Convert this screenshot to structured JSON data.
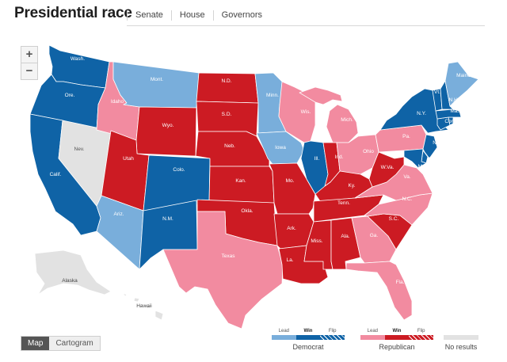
{
  "header": {
    "title": "Presidential race",
    "tabs": [
      "Senate",
      "House",
      "Governors"
    ]
  },
  "zoom": {
    "in": "+",
    "out": "−"
  },
  "view_toggle": {
    "map": "Map",
    "cartogram": "Cartogram",
    "selected": "Map"
  },
  "legend": {
    "democrat": {
      "caption": "Democrat",
      "lead": "Lead",
      "win": "Win",
      "flip": "Flip"
    },
    "republican": {
      "caption": "Republican",
      "lead": "Lead",
      "win": "Win",
      "flip": "Flip"
    },
    "no_results": {
      "caption": "No results"
    }
  },
  "colors": {
    "dem_lead": "#79aedb",
    "dem_win": "#0f63a6",
    "rep_lead": "#f28ba0",
    "rep_win": "#cc1b23",
    "no_results": "#e2e2e2",
    "flip_stripe": "#ffffff"
  },
  "states": [
    {
      "id": "WA",
      "label": "Wash.",
      "status": "dem_win"
    },
    {
      "id": "OR",
      "label": "Ore.",
      "status": "dem_win"
    },
    {
      "id": "CA",
      "label": "Calif.",
      "status": "dem_win"
    },
    {
      "id": "NV",
      "label": "Nev.",
      "status": "no_results"
    },
    {
      "id": "ID",
      "label": "Idaho",
      "status": "rep_lead"
    },
    {
      "id": "MT",
      "label": "Mont.",
      "status": "dem_lead"
    },
    {
      "id": "WY",
      "label": "Wyo.",
      "status": "rep_win"
    },
    {
      "id": "UT",
      "label": "Utah",
      "status": "rep_win"
    },
    {
      "id": "AZ",
      "label": "Ariz.",
      "status": "dem_lead"
    },
    {
      "id": "CO",
      "label": "Colo.",
      "status": "dem_win"
    },
    {
      "id": "NM",
      "label": "N.M.",
      "status": "dem_win"
    },
    {
      "id": "ND",
      "label": "N.D.",
      "status": "rep_win"
    },
    {
      "id": "SD",
      "label": "S.D.",
      "status": "rep_win"
    },
    {
      "id": "NE",
      "label": "Neb.",
      "status": "rep_win"
    },
    {
      "id": "KS",
      "label": "Kan.",
      "status": "rep_win"
    },
    {
      "id": "OK",
      "label": "Okla.",
      "status": "rep_win"
    },
    {
      "id": "TX",
      "label": "Texas",
      "status": "rep_lead"
    },
    {
      "id": "MN",
      "label": "Minn.",
      "status": "dem_lead"
    },
    {
      "id": "IA",
      "label": "Iowa",
      "status": "dem_lead"
    },
    {
      "id": "MO",
      "label": "Mo.",
      "status": "rep_win"
    },
    {
      "id": "AR",
      "label": "Ark.",
      "status": "rep_win"
    },
    {
      "id": "LA",
      "label": "La.",
      "status": "rep_win"
    },
    {
      "id": "WI",
      "label": "Wis.",
      "status": "rep_lead"
    },
    {
      "id": "IL",
      "label": "Ill.",
      "status": "dem_win"
    },
    {
      "id": "MI",
      "label": "Mich.",
      "status": "rep_lead"
    },
    {
      "id": "IN",
      "label": "Ind.",
      "status": "rep_win"
    },
    {
      "id": "OH",
      "label": "Ohio",
      "status": "rep_lead"
    },
    {
      "id": "KY",
      "label": "Ky.",
      "status": "rep_win"
    },
    {
      "id": "TN",
      "label": "Tenn.",
      "status": "rep_win"
    },
    {
      "id": "MS",
      "label": "Miss.",
      "status": "rep_win"
    },
    {
      "id": "AL",
      "label": "Ala.",
      "status": "rep_win"
    },
    {
      "id": "GA",
      "label": "Ga.",
      "status": "rep_lead"
    },
    {
      "id": "FL",
      "label": "Fla.",
      "status": "rep_lead"
    },
    {
      "id": "SC",
      "label": "S.C.",
      "status": "rep_win"
    },
    {
      "id": "NC",
      "label": "N.C.",
      "status": "rep_lead"
    },
    {
      "id": "VA",
      "label": "Va.",
      "status": "rep_lead"
    },
    {
      "id": "WV",
      "label": "W.Va.",
      "status": "rep_win"
    },
    {
      "id": "PA",
      "label": "Pa.",
      "status": "rep_lead"
    },
    {
      "id": "NY",
      "label": "N.Y.",
      "status": "dem_win"
    },
    {
      "id": "NJ",
      "label": "N.J.",
      "status": "dem_win"
    },
    {
      "id": "DE",
      "label": "Del.",
      "status": "dem_win"
    },
    {
      "id": "MD",
      "label": "Md.",
      "status": "dem_win"
    },
    {
      "id": "CT",
      "label": "Conn.",
      "status": "dem_win"
    },
    {
      "id": "RI",
      "label": "R.I.",
      "status": "dem_win"
    },
    {
      "id": "MA",
      "label": "Mass.",
      "status": "dem_win"
    },
    {
      "id": "VT",
      "label": "Vt.",
      "status": "dem_win"
    },
    {
      "id": "NH",
      "label": "N.H.",
      "status": "dem_win"
    },
    {
      "id": "ME",
      "label": "Maine",
      "status": "dem_lead"
    },
    {
      "id": "AK",
      "label": "Alaska",
      "status": "no_results"
    },
    {
      "id": "HI",
      "label": "Hawaii",
      "status": "no_results"
    }
  ]
}
